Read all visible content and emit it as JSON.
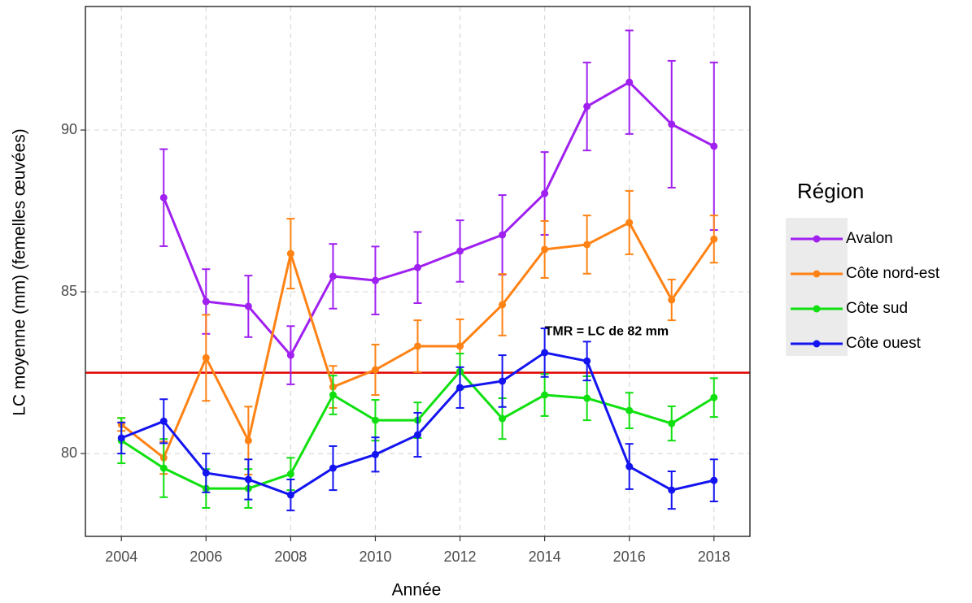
{
  "chart_data": {
    "type": "line",
    "x_label": "Année",
    "y_label": "LC moyenne (mm) (femelles œuvées)",
    "legend_title": "Région",
    "legend_position": "right",
    "grid": true,
    "xlim": [
      2003.15,
      2018.85
    ],
    "ylim": [
      77.44,
      93.82
    ],
    "xticks": [
      2004,
      2006,
      2008,
      2010,
      2012,
      2014,
      2016,
      2018
    ],
    "yticks": [
      80,
      85,
      90
    ],
    "hline": 82.5,
    "hline_color": "#e00000",
    "annotation": {
      "text": "TMR = LC de 82 mm",
      "x": 2014,
      "y": 83.77
    },
    "x": [
      2004,
      2005,
      2006,
      2007,
      2008,
      2009,
      2010,
      2011,
      2012,
      2013,
      2014,
      2015,
      2016,
      2017,
      2018
    ],
    "series": [
      {
        "name": "Avalon",
        "color": "#a020f0",
        "values": [
          null,
          87.91,
          84.7,
          84.55,
          83.04,
          85.48,
          85.35,
          85.75,
          86.26,
          86.76,
          88.04,
          90.73,
          91.48,
          90.18,
          89.5
        ],
        "errors": [
          null,
          1.5,
          1.0,
          0.95,
          0.9,
          1.0,
          1.05,
          1.1,
          0.95,
          1.23,
          1.28,
          1.36,
          1.6,
          1.96,
          2.59
        ]
      },
      {
        "name": "Côte nord-est",
        "color": "#ff8214",
        "values": [
          80.9,
          79.87,
          82.96,
          80.4,
          86.18,
          82.06,
          82.59,
          83.32,
          83.32,
          84.6,
          86.31,
          86.46,
          87.14,
          84.75,
          86.63
        ],
        "errors": [
          0.2,
          0.5,
          1.33,
          1.05,
          1.08,
          0.65,
          0.78,
          0.8,
          0.83,
          0.95,
          0.88,
          0.9,
          0.98,
          0.63,
          0.73
        ]
      },
      {
        "name": "Côte sud",
        "color": "#10e010",
        "values": [
          80.4,
          79.55,
          78.92,
          78.92,
          79.37,
          81.81,
          81.03,
          81.03,
          82.54,
          81.08,
          81.81,
          81.71,
          81.33,
          80.93,
          81.73
        ],
        "errors": [
          0.7,
          0.9,
          0.6,
          0.6,
          0.5,
          0.6,
          0.63,
          0.55,
          0.55,
          0.63,
          0.65,
          0.68,
          0.55,
          0.53,
          0.6
        ]
      },
      {
        "name": "Côte ouest",
        "color": "#1414f0",
        "values": [
          80.48,
          81.0,
          79.4,
          79.2,
          78.72,
          79.55,
          79.97,
          80.58,
          82.04,
          82.24,
          83.12,
          82.86,
          79.6,
          78.87,
          79.17
        ],
        "errors": [
          0.48,
          0.68,
          0.6,
          0.62,
          0.48,
          0.68,
          0.53,
          0.68,
          0.63,
          0.8,
          0.75,
          0.6,
          0.7,
          0.58,
          0.65
        ]
      }
    ]
  }
}
